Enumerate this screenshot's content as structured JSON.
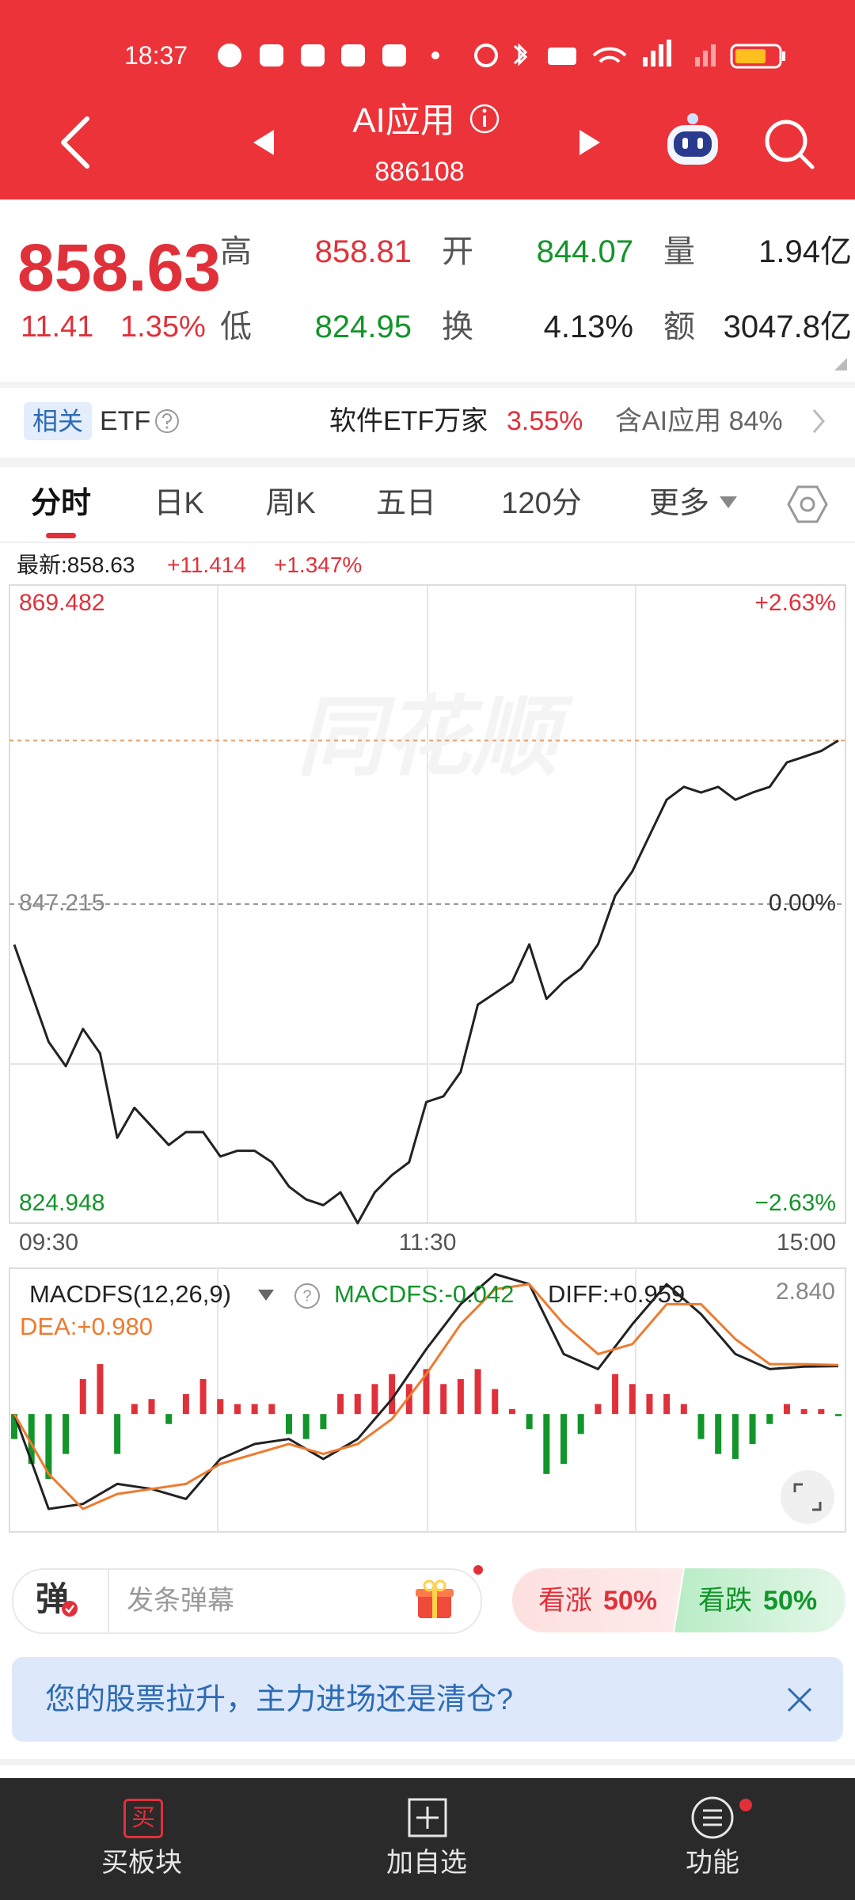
{
  "status_bar": {
    "time": "18:37"
  },
  "header": {
    "title": "AI应用",
    "code": "886108"
  },
  "quote": {
    "price": "858.63",
    "change": "11.41",
    "change_pct": "1.35%",
    "high_label": "高",
    "high": "858.81",
    "open_label": "开",
    "open": "844.07",
    "volume_label": "量",
    "volume": "1.94亿",
    "low_label": "低",
    "low": "824.95",
    "turnover_label": "换",
    "turnover": "4.13%",
    "amount_label": "额",
    "amount": "3047.8亿"
  },
  "etf": {
    "badge": "相关",
    "label": "ETF",
    "name": "软件ETF万家",
    "pct": "3.55%",
    "holding": "含AI应用 84%"
  },
  "tabs": [
    "分时",
    "日K",
    "周K",
    "五日",
    "120分",
    "更多"
  ],
  "latest": {
    "price": "最新:858.63",
    "change": "+11.414",
    "pct": "+1.347%"
  },
  "chart_data": [
    {
      "type": "line",
      "values": [
        844.38,
        841.0,
        837.6,
        835.9,
        838.5,
        836.8,
        830.9,
        833.0,
        831.7,
        830.4,
        831.3,
        831.3,
        829.6,
        830.0,
        830.0,
        829.2,
        827.5,
        826.6,
        826.2,
        827.1,
        824.95,
        827.1,
        828.3,
        829.2,
        833.4,
        833.8,
        835.5,
        840.2,
        841.0,
        841.8,
        844.4,
        840.6,
        841.8,
        842.7,
        844.4,
        847.8,
        849.5,
        852.0,
        854.5,
        855.4,
        855.0,
        855.4,
        854.5,
        855.0,
        855.4,
        857.1,
        857.5,
        857.9,
        858.63
      ],
      "color": "#222222",
      "ylim": [
        824.948,
        869.482
      ],
      "yticks": [
        869.482,
        847.215,
        824.948
      ],
      "y2lim": [
        -2.63,
        2.63
      ],
      "y2ticks": [
        {
          "value": 2.63,
          "label": "+2.63%"
        },
        {
          "value": 0,
          "label": "0.00%"
        },
        {
          "value": -2.63,
          "label": "−2.63%"
        }
      ],
      "x_labels": [
        "09:30",
        "11:30",
        "15:00"
      ],
      "price_line": 858.63,
      "watermark": "同花顺",
      "grid": true
    },
    {
      "type": "macd",
      "title": "MACDFS(12,26,9)",
      "ylim": [
        -2.36,
        2.84
      ],
      "yticks": [
        {
          "value": 2.84,
          "label": "2.840"
        }
      ],
      "series": [
        {
          "label": "MACDFS:-0.042",
          "kind": "bar",
          "color_up": "#e0313b",
          "color_down": "#12952a",
          "values": [
            -0.5,
            -1.0,
            -1.3,
            -0.8,
            0.7,
            1.0,
            -0.8,
            0.2,
            0.3,
            -0.2,
            0.4,
            0.7,
            0.3,
            0.2,
            0.2,
            0.2,
            -0.4,
            -0.5,
            -0.3,
            0.4,
            0.4,
            0.6,
            0.8,
            0.6,
            0.9,
            0.6,
            0.7,
            0.9,
            0.5,
            0.1,
            -0.3,
            -1.2,
            -1.0,
            -0.4,
            0.2,
            0.8,
            0.6,
            0.4,
            0.4,
            0.2,
            -0.5,
            -0.8,
            -0.9,
            -0.6,
            -0.2,
            0.2,
            0.1,
            0.1,
            -0.042
          ]
        },
        {
          "label": "DIFF:+0.959",
          "kind": "line",
          "color": "#222222",
          "values": [
            0.0,
            -1.9,
            -1.8,
            -1.4,
            -1.5,
            -1.7,
            -0.9,
            -0.6,
            -0.5,
            -0.9,
            -0.5,
            0.3,
            1.3,
            2.2,
            2.8,
            2.6,
            1.2,
            0.9,
            1.8,
            2.6,
            2.0,
            1.2,
            0.9,
            0.95,
            0.959
          ]
        },
        {
          "label": "DEA:+0.980",
          "kind": "line",
          "color": "#ee7a2e",
          "values": [
            0.0,
            -1.2,
            -1.9,
            -1.6,
            -1.5,
            -1.4,
            -1.0,
            -0.8,
            -0.6,
            -0.8,
            -0.6,
            -0.1,
            0.8,
            1.8,
            2.5,
            2.6,
            1.8,
            1.2,
            1.4,
            2.2,
            2.2,
            1.5,
            1.0,
            1.0,
            0.98
          ]
        }
      ]
    }
  ],
  "danmaku": {
    "badge": "弹",
    "placeholder": "发条弹幕"
  },
  "sentiment": {
    "bull_label": "看涨",
    "bull_pct": "50%",
    "bear_label": "看跌",
    "bear_pct": "50%"
  },
  "banner": {
    "text": "您的股票拉升，主力进场还是清仓?"
  },
  "nav": [
    {
      "icon": "买",
      "label": "买板块"
    },
    {
      "label": "加自选"
    },
    {
      "label": "功能"
    }
  ]
}
